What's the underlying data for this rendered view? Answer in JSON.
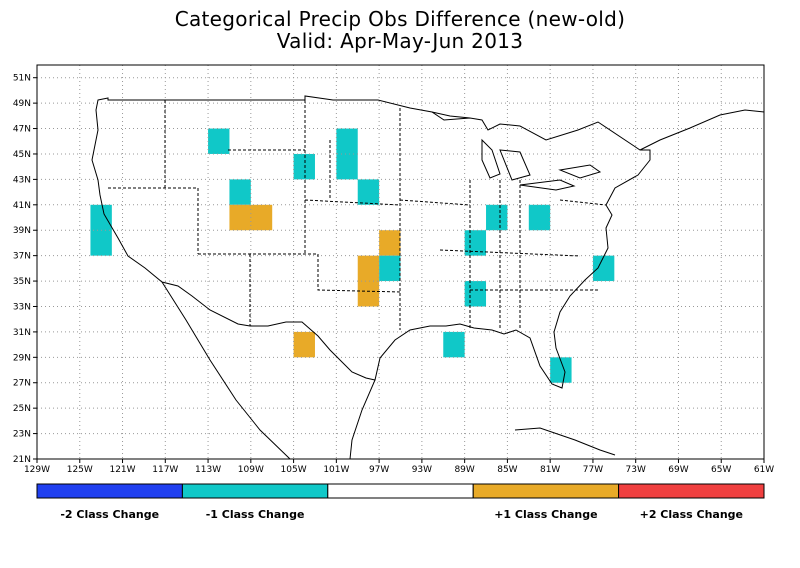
{
  "title": "Categorical Precip Obs Difference (new-old)",
  "subtitle": "Valid: Apr-May-Jun 2013",
  "colors": {
    "minus2": "#2040f0",
    "minus1": "#10c8c8",
    "zero": "#ffffff",
    "plus1": "#e8aa28",
    "plus2": "#f04040",
    "boundary": "#000000",
    "grid": "#999999"
  },
  "axes": {
    "x_ticks": [
      "129W",
      "125W",
      "121W",
      "117W",
      "113W",
      "109W",
      "105W",
      "101W",
      "97W",
      "93W",
      "89W",
      "85W",
      "81W",
      "77W",
      "73W",
      "69W",
      "65W",
      "61W"
    ],
    "y_ticks": [
      "21N",
      "23N",
      "25N",
      "27N",
      "29N",
      "31N",
      "33N",
      "35N",
      "37N",
      "39N",
      "41N",
      "43N",
      "45N",
      "47N",
      "49N",
      "51N"
    ],
    "lon_range": [
      -129,
      -61
    ],
    "lat_range": [
      21,
      52
    ]
  },
  "legend": {
    "labels": [
      {
        "text": "-2 Class Change",
        "class": "minus2"
      },
      {
        "text": "-1 Class Change",
        "class": "minus1"
      },
      {
        "text": "",
        "class": "zero"
      },
      {
        "text": "+1 Class Change",
        "class": "plus1"
      },
      {
        "text": "+2 Class Change",
        "class": "plus2"
      }
    ]
  },
  "cells": [
    {
      "lon_min": -124,
      "lon_max": -122,
      "lat_min": 37,
      "lat_max": 41,
      "class": "minus1"
    },
    {
      "lon_min": -113,
      "lon_max": -111,
      "lat_min": 45,
      "lat_max": 47,
      "class": "minus1"
    },
    {
      "lon_min": -111,
      "lon_max": -109,
      "lat_min": 41,
      "lat_max": 43,
      "class": "minus1"
    },
    {
      "lon_min": -111,
      "lon_max": -107,
      "lat_min": 39,
      "lat_max": 41,
      "class": "plus1"
    },
    {
      "lon_min": -105,
      "lon_max": -103,
      "lat_min": 43,
      "lat_max": 45,
      "class": "minus1"
    },
    {
      "lon_min": -101,
      "lon_max": -99,
      "lat_min": 43,
      "lat_max": 47,
      "class": "minus1"
    },
    {
      "lon_min": -99,
      "lon_max": -97,
      "lat_min": 41,
      "lat_max": 43,
      "class": "minus1"
    },
    {
      "lon_min": -97,
      "lon_max": -95,
      "lat_min": 37,
      "lat_max": 39,
      "class": "plus1"
    },
    {
      "lon_min": -97,
      "lon_max": -95,
      "lat_min": 35,
      "lat_max": 37,
      "class": "minus1"
    },
    {
      "lon_min": -99,
      "lon_max": -97,
      "lat_min": 33,
      "lat_max": 37,
      "class": "plus1"
    },
    {
      "lon_min": -105,
      "lon_max": -103,
      "lat_min": 29,
      "lat_max": 31,
      "class": "plus1"
    },
    {
      "lon_min": -89,
      "lon_max": -87,
      "lat_min": 37,
      "lat_max": 39,
      "class": "minus1"
    },
    {
      "lon_min": -87,
      "lon_max": -85,
      "lat_min": 39,
      "lat_max": 41,
      "class": "minus1"
    },
    {
      "lon_min": -83,
      "lon_max": -81,
      "lat_min": 39,
      "lat_max": 41,
      "class": "minus1"
    },
    {
      "lon_min": -89,
      "lon_max": -87,
      "lat_min": 33,
      "lat_max": 35,
      "class": "minus1"
    },
    {
      "lon_min": -91,
      "lon_max": -89,
      "lat_min": 29,
      "lat_max": 31,
      "class": "minus1"
    },
    {
      "lon_min": -77,
      "lon_max": -75,
      "lat_min": 35,
      "lat_max": 37,
      "class": "minus1"
    },
    {
      "lon_min": -81,
      "lon_max": -79,
      "lat_min": 27,
      "lat_max": 29,
      "class": "minus1"
    }
  ]
}
